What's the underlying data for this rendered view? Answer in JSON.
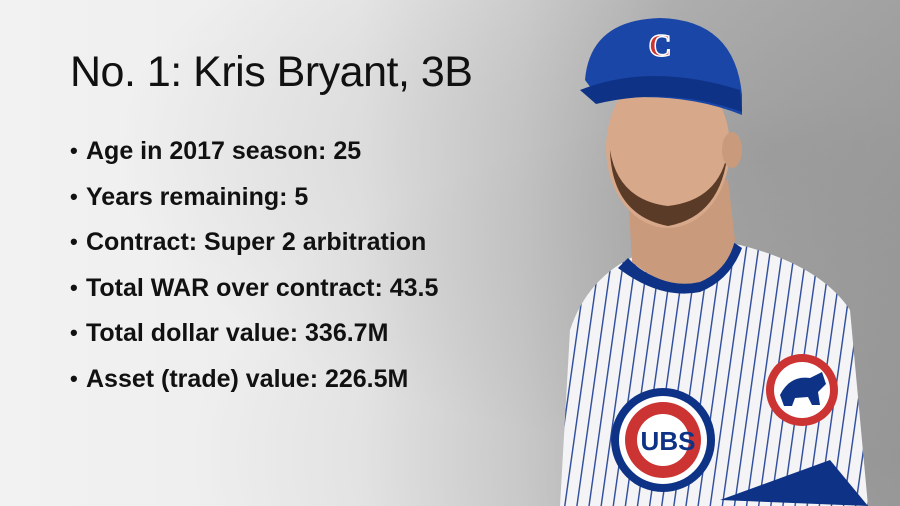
{
  "slide": {
    "title": "No. 1: Kris Bryant, 3B",
    "bullets": [
      "Age in 2017 season: 25",
      "Years remaining: 5",
      "Contract: Super 2 arbitration",
      "Total WAR over contract: 43.5",
      "Total dollar value: 336.7M",
      "Asset (trade) value: 226.5M"
    ]
  },
  "photo": {
    "cap_letter": "C",
    "logo_text": "UBS",
    "colors": {
      "cubs_blue": "#0e3386",
      "cubs_red": "#cc3433",
      "jersey": "#f4f4f6"
    }
  }
}
